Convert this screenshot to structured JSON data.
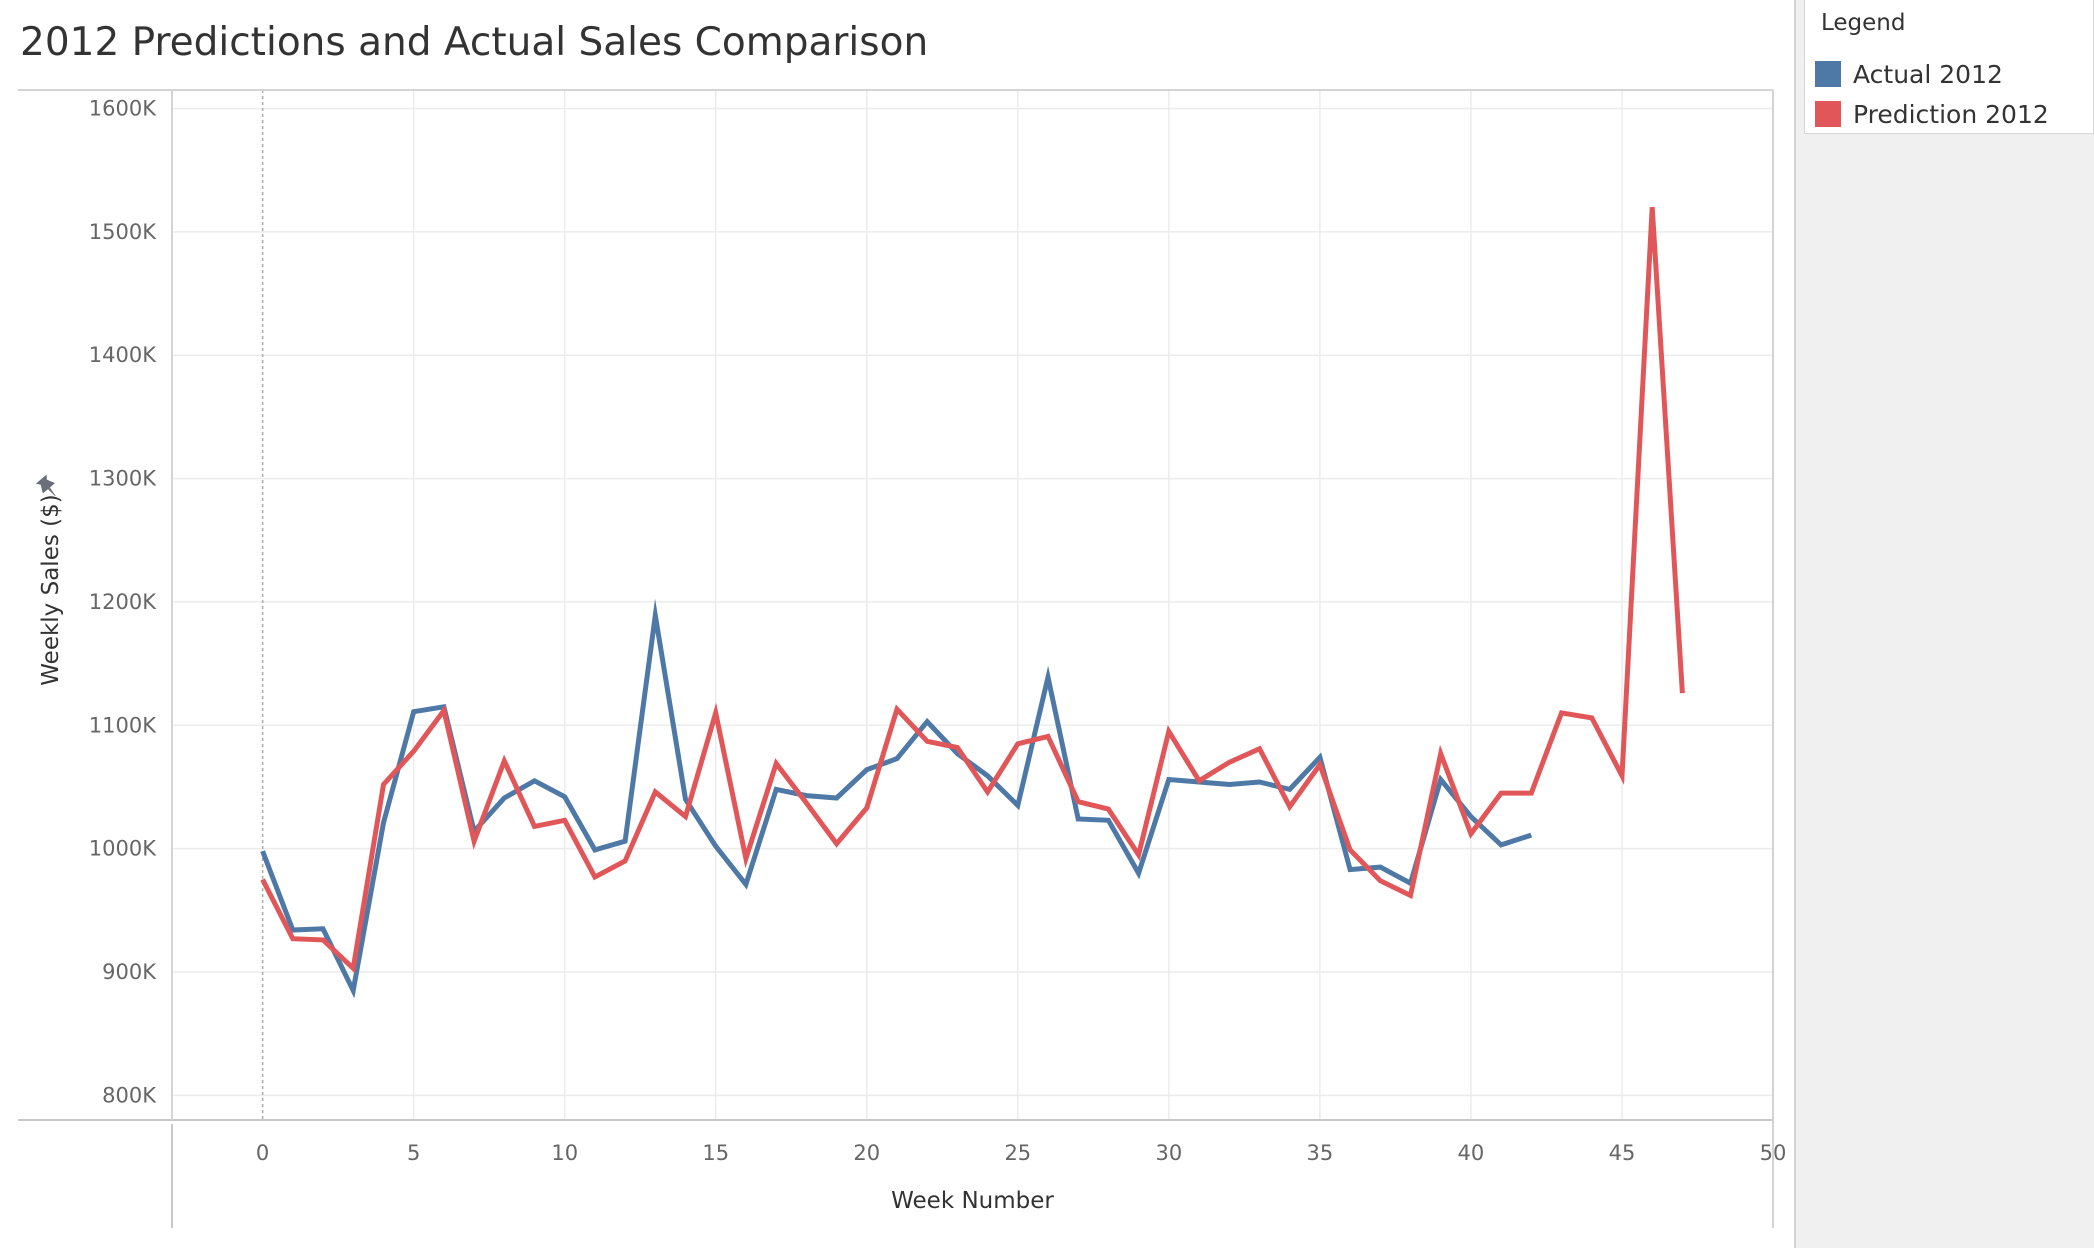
{
  "title": "2012 Predictions and Actual Sales Comparison",
  "legend": {
    "title": "Legend",
    "items": [
      {
        "label": "Actual 2012",
        "color": "#4e79a7"
      },
      {
        "label": "Prediction 2012",
        "color": "#e15759"
      }
    ]
  },
  "chart_data": {
    "type": "line",
    "title": "2012 Predictions and Actual Sales Comparison",
    "xlabel": "Week Number",
    "ylabel": "Weekly Sales ($)",
    "xlim": [
      -3,
      50
    ],
    "ylim": [
      780,
      1615
    ],
    "xticks": [
      0,
      5,
      10,
      15,
      20,
      25,
      30,
      35,
      40,
      45,
      50
    ],
    "xtick_labels": [
      "0",
      "5",
      "10",
      "15",
      "20",
      "25",
      "30",
      "35",
      "40",
      "45",
      "50"
    ],
    "yticks": [
      800,
      900,
      1000,
      1100,
      1200,
      1300,
      1400,
      1500,
      1600
    ],
    "ytick_labels": [
      "800K",
      "900K",
      "1000K",
      "1100K",
      "1200K",
      "1300K",
      "1400K",
      "1500K",
      "1600K"
    ],
    "grid": true,
    "legend_position": "top-right",
    "series": [
      {
        "name": "Actual 2012",
        "color": "#4e79a7",
        "x": [
          0,
          1,
          2,
          3,
          4,
          5,
          6,
          7,
          8,
          9,
          10,
          11,
          12,
          13,
          14,
          15,
          16,
          17,
          18,
          19,
          20,
          21,
          22,
          23,
          24,
          25,
          26,
          27,
          28,
          29,
          30,
          31,
          32,
          33,
          34,
          35,
          36,
          37,
          38,
          39,
          40,
          41,
          42
        ],
        "y": [
          998,
          934,
          935,
          885,
          1021,
          1111,
          1115,
          1014,
          1041,
          1055,
          1042,
          999,
          1006,
          1189,
          1040,
          1002,
          971,
          1048,
          1043,
          1041,
          1064,
          1073,
          1103,
          1077,
          1059,
          1035,
          1139,
          1024,
          1023,
          980,
          1056,
          1054,
          1052,
          1054,
          1048,
          1074,
          983,
          985,
          972,
          1056,
          1026,
          1003,
          1011
        ]
      },
      {
        "name": "Prediction 2012",
        "color": "#e15759",
        "x": [
          0,
          1,
          2,
          3,
          4,
          5,
          6,
          7,
          8,
          9,
          10,
          11,
          12,
          13,
          14,
          15,
          16,
          17,
          18,
          19,
          20,
          21,
          22,
          23,
          24,
          25,
          26,
          27,
          28,
          29,
          30,
          31,
          32,
          33,
          34,
          35,
          36,
          37,
          38,
          39,
          40,
          41,
          42,
          43,
          44,
          45,
          46,
          47
        ],
        "y": [
          975,
          927,
          926,
          903,
          1052,
          1079,
          1112,
          1006,
          1071,
          1018,
          1023,
          977,
          990,
          1046,
          1026,
          1110,
          992,
          1069,
          1037,
          1004,
          1033,
          1113,
          1087,
          1082,
          1046,
          1085,
          1091,
          1038,
          1032,
          995,
          1095,
          1055,
          1070,
          1081,
          1034,
          1068,
          999,
          974,
          962,
          1077,
          1012,
          1045,
          1045,
          1110,
          1106,
          1059,
          1520,
          1126
        ]
      }
    ]
  }
}
